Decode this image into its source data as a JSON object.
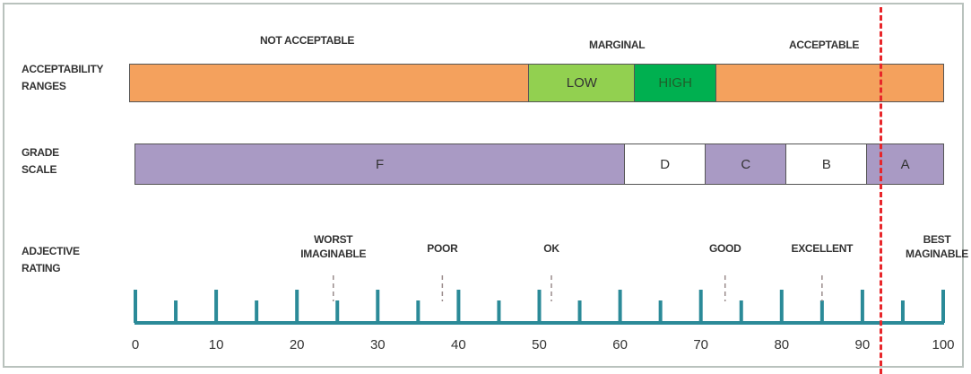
{
  "acceptability": {
    "row_label": "ACCEPTABILITY\nRANGES",
    "header_not_acceptable": "NOT ACCEPTABLE",
    "header_marginal": "MARGINAL",
    "header_acceptable": "ACCEPTABLE",
    "segments": [
      {
        "label": "",
        "from": 0,
        "to": 49,
        "color": "#f4a15d",
        "text_color": "#333333"
      },
      {
        "label": "LOW",
        "from": 49,
        "to": 62,
        "color": "#92d050",
        "text_color": "#333333"
      },
      {
        "label": "HIGH",
        "from": 62,
        "to": 72,
        "color": "#00b050",
        "text_color": "#1f5f2a"
      },
      {
        "label": "",
        "from": 72,
        "to": 100,
        "color": "#f4a15d",
        "text_color": "#333333"
      }
    ]
  },
  "grade": {
    "row_label": "GRADE\nSCALE",
    "segments": [
      {
        "label": "F",
        "from": 0,
        "to": 60.5,
        "color": "#a99ac4"
      },
      {
        "label": "D",
        "from": 60.5,
        "to": 70.5,
        "color": "#ffffff"
      },
      {
        "label": "C",
        "from": 70.5,
        "to": 80.5,
        "color": "#a99ac4"
      },
      {
        "label": "B",
        "from": 80.5,
        "to": 90.5,
        "color": "#ffffff"
      },
      {
        "label": "A",
        "from": 90.5,
        "to": 100,
        "color": "#a99ac4"
      }
    ]
  },
  "adjective": {
    "row_label": "ADJECTIVE\nRATING",
    "ratings": [
      {
        "label": "WORST\nIMAGINABLE",
        "value": 24.5
      },
      {
        "label": "POOR",
        "value": 38
      },
      {
        "label": "OK",
        "value": 51.5
      },
      {
        "label": "GOOD",
        "value": 73
      },
      {
        "label": "EXCELLENT",
        "value": 85
      },
      {
        "label": "BEST\nMAGINABLE",
        "value": 100
      }
    ]
  },
  "scale": {
    "min": 0,
    "max": 100,
    "major_ticks": [
      0,
      10,
      20,
      30,
      40,
      50,
      60,
      70,
      80,
      90,
      100
    ],
    "minor_ticks": [
      5,
      15,
      25,
      35,
      45,
      55,
      65,
      75,
      85,
      95
    ],
    "tick_labels": [
      "0",
      "10",
      "20",
      "30",
      "40",
      "50",
      "60",
      "70",
      "80",
      "90",
      "100"
    ],
    "color": "#2b8a98"
  },
  "cutoff": {
    "value": 92.5,
    "color": "#e8262a"
  }
}
